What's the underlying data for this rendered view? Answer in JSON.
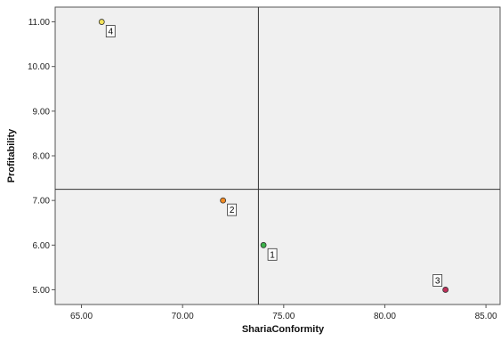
{
  "chart_data": {
    "type": "scatter",
    "xlabel": "ShariaConformity",
    "ylabel": "Profitability",
    "xlim": [
      63.7,
      85.7
    ],
    "ylim": [
      4.67,
      11.33
    ],
    "xticks": [
      "65.00",
      "70.00",
      "75.00",
      "80.00",
      "85.00"
    ],
    "xtick_values": [
      65,
      70,
      75,
      80,
      85
    ],
    "yticks": [
      "5.00",
      "6.00",
      "7.00",
      "8.00",
      "9.00",
      "10.00",
      "11.00"
    ],
    "ytick_values": [
      5,
      6,
      7,
      8,
      9,
      10,
      11
    ],
    "reference_lines": {
      "x": 73.75,
      "y": 7.25
    },
    "grid": false,
    "plot_background": "#f0f0f0",
    "points": [
      {
        "label": "1",
        "x": 74.0,
        "y": 6.0,
        "color": "#3cb34a"
      },
      {
        "label": "2",
        "x": 72.0,
        "y": 7.0,
        "color": "#f08a24"
      },
      {
        "label": "3",
        "x": 83.0,
        "y": 5.0,
        "color": "#c0305a"
      },
      {
        "label": "4",
        "x": 66.0,
        "y": 11.0,
        "color": "#f2e25a"
      }
    ]
  }
}
